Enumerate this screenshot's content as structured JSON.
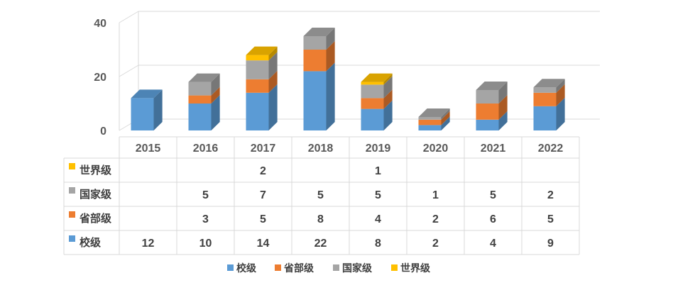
{
  "chart_data": {
    "type": "bar",
    "stacked": true,
    "style": "3d-column-with-data-table",
    "categories": [
      "2015",
      "2016",
      "2017",
      "2018",
      "2019",
      "2020",
      "2021",
      "2022"
    ],
    "series": [
      {
        "name": "校级",
        "color": "#5B9BD5",
        "values": [
          12,
          10,
          14,
          22,
          8,
          2,
          4,
          9
        ]
      },
      {
        "name": "省部级",
        "color": "#ED7D31",
        "values": [
          null,
          3,
          5,
          8,
          4,
          2,
          6,
          5
        ]
      },
      {
        "name": "国家级",
        "color": "#A5A5A5",
        "values": [
          null,
          5,
          7,
          5,
          5,
          1,
          5,
          2
        ]
      },
      {
        "name": "世界级",
        "color": "#FFC000",
        "values": [
          null,
          null,
          2,
          null,
          1,
          null,
          null,
          null
        ]
      }
    ],
    "ylim": [
      0,
      40
    ],
    "yticks": [
      0,
      20,
      40
    ],
    "grid": true,
    "legend_position": "bottom",
    "data_table": true
  }
}
